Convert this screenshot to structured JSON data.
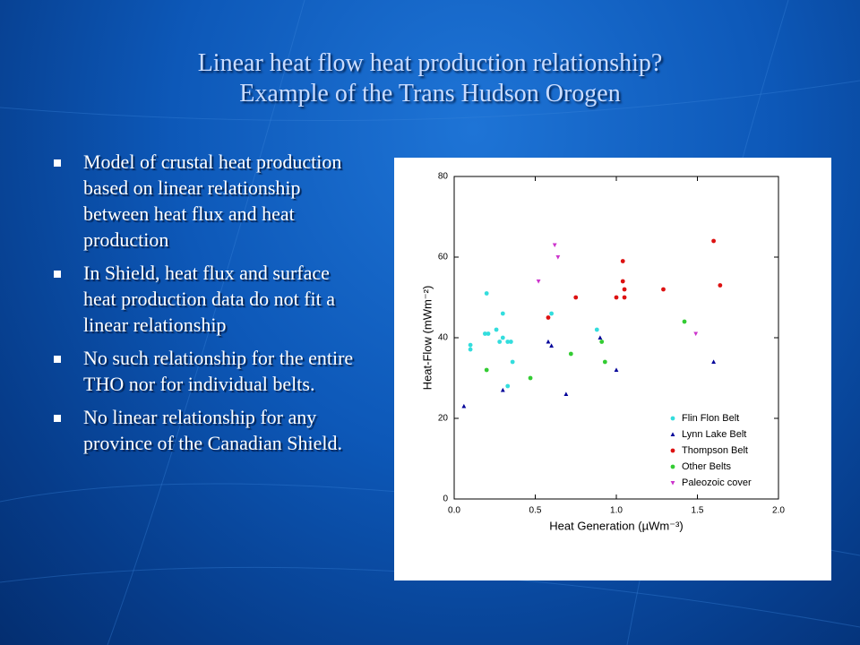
{
  "title": {
    "lines": [
      "Linear heat flow heat production relationship?",
      "Example of the Trans Hudson Orogen"
    ]
  },
  "bullets": [
    "Model of crustal heat production based on linear relationship between heat flux and heat production",
    "In Shield, heat flux and surface heat production data do not fit a linear relationship",
    "No such relationship for the entire THO nor for individual belts.",
    "No linear relationship for any province of the Canadian Shield."
  ],
  "chart_data": {
    "type": "scatter",
    "x_label": "Heat Generation (µWm⁻³)",
    "y_label": "Heat-Flow (mWm⁻²)",
    "xlim": [
      0,
      2
    ],
    "ylim": [
      0,
      80
    ],
    "xticks": [
      {
        "value": 0,
        "label": "0.0"
      },
      0.5,
      {
        "value": 1,
        "label": "1.0"
      },
      1.5,
      {
        "value": 2,
        "label": "2.0"
      }
    ],
    "yticks": [
      0,
      20,
      40,
      60,
      80
    ],
    "legend": "lower right",
    "series": [
      {
        "name": "Flin Flon Belt",
        "color": "#33dddd",
        "marker": "circle",
        "x": [
          0.1,
          0.1,
          0.2,
          0.19,
          0.21,
          0.26,
          0.28,
          0.3,
          0.3,
          0.33,
          0.35,
          0.36,
          0.33,
          0.6,
          0.88
        ],
        "values": [
          38.2,
          37.1,
          51,
          41,
          41,
          42,
          39,
          46,
          40,
          39,
          39,
          34,
          28,
          46,
          42
        ]
      },
      {
        "name": "Lynn Lake Belt",
        "color": "#000099",
        "marker": "triangle",
        "x": [
          0.06,
          0.3,
          0.58,
          0.6,
          0.69,
          0.9,
          1.0,
          1.6
        ],
        "values": [
          23,
          27,
          39,
          38,
          26,
          40,
          32,
          34
        ]
      },
      {
        "name": "Thompson Belt",
        "color": "#dd1111",
        "marker": "circle",
        "x": [
          0.58,
          0.75,
          1.0,
          1.04,
          1.04,
          1.05,
          1.05,
          1.29,
          1.6,
          1.64
        ],
        "values": [
          45,
          50,
          50,
          59,
          54,
          52,
          50,
          52,
          64,
          53
        ]
      },
      {
        "name": "Other Belts",
        "color": "#33cc33",
        "marker": "circle",
        "x": [
          0.2,
          0.47,
          0.72,
          0.91,
          0.93,
          1.42
        ],
        "values": [
          32,
          30,
          36,
          39,
          34,
          44
        ]
      },
      {
        "name": "Paleozoic cover",
        "color": "#cc33cc",
        "marker": "triangle-down",
        "x": [
          0.52,
          0.62,
          0.64,
          1.49
        ],
        "values": [
          54,
          63,
          60,
          41
        ]
      }
    ]
  }
}
